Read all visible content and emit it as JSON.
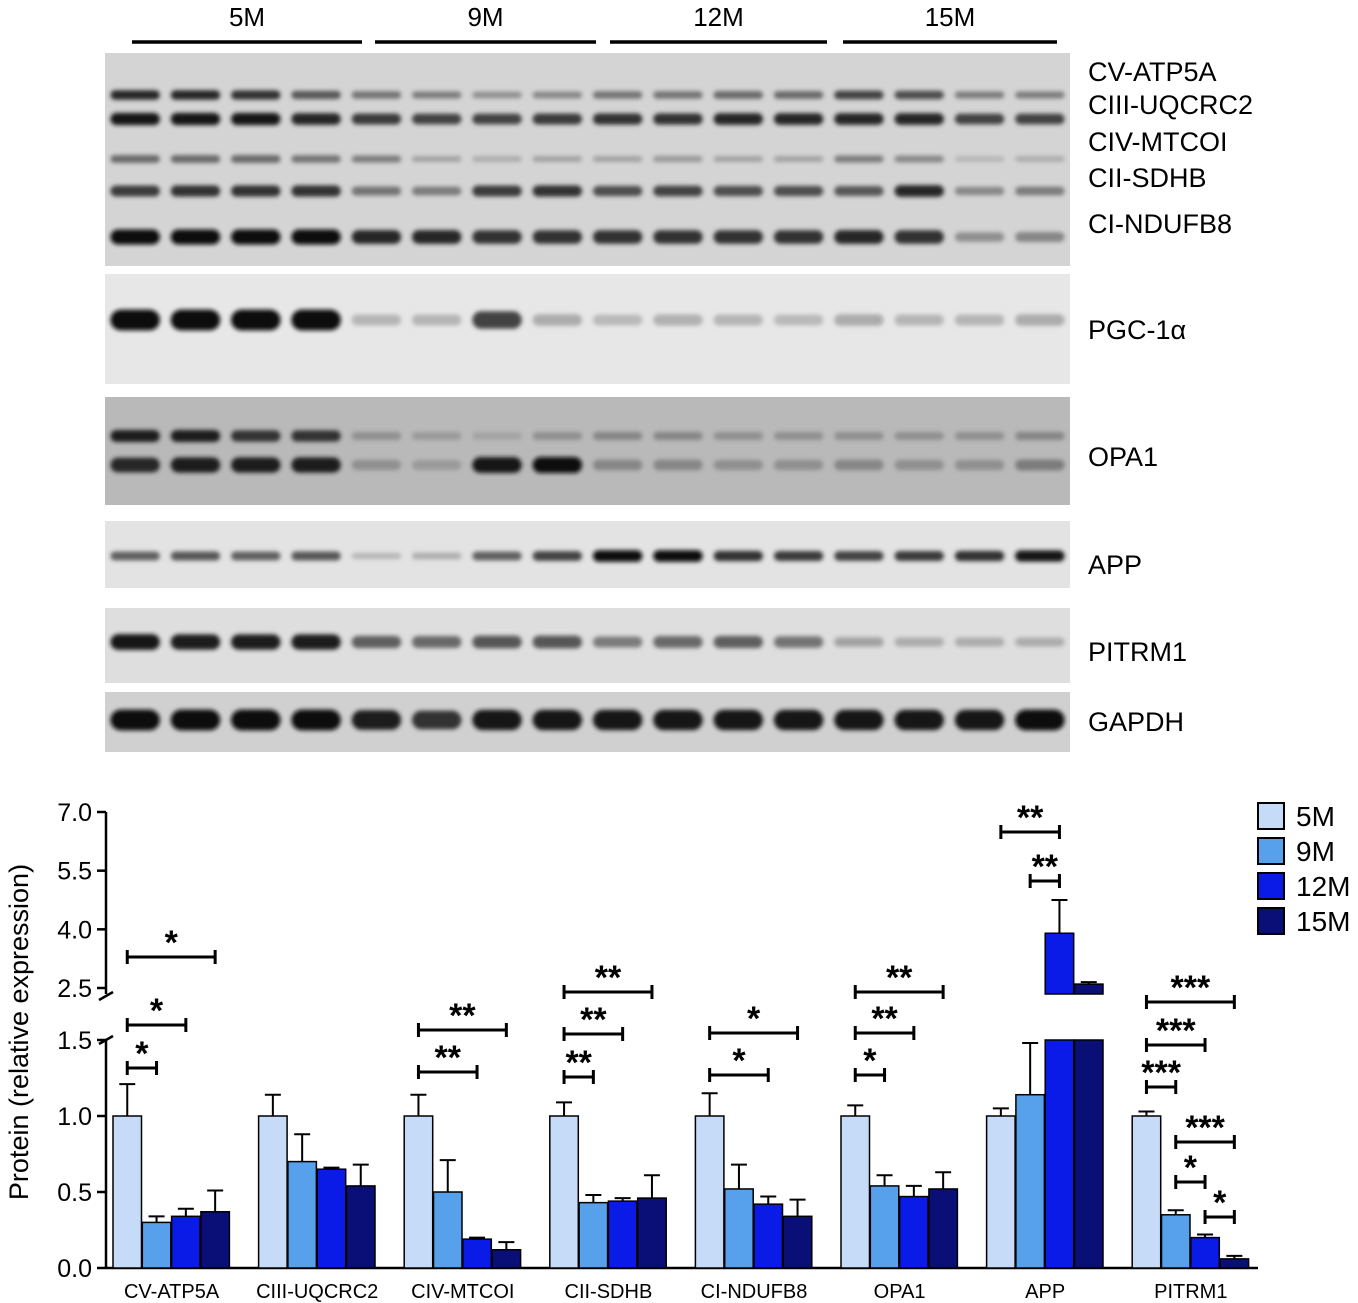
{
  "blot": {
    "age_groups": [
      "5M",
      "9M",
      "12M",
      "15M"
    ],
    "lanes_per_group": 4,
    "panels": [
      {
        "id": "oxphos",
        "bands": [
          {
            "label": "CV-ATP5A",
            "intensity": [
              0.85,
              0.85,
              0.8,
              0.6,
              0.45,
              0.4,
              0.3,
              0.35,
              0.45,
              0.45,
              0.5,
              0.5,
              0.7,
              0.65,
              0.4,
              0.4
            ]
          },
          {
            "label": "CIII-UQCRC2",
            "intensity": [
              0.95,
              0.95,
              0.95,
              0.85,
              0.75,
              0.7,
              0.7,
              0.75,
              0.8,
              0.8,
              0.85,
              0.85,
              0.85,
              0.85,
              0.7,
              0.7
            ]
          },
          {
            "label": "CIV-MTCOI",
            "intensity": [
              0.5,
              0.5,
              0.5,
              0.45,
              0.4,
              0.2,
              0.15,
              0.2,
              0.2,
              0.25,
              0.2,
              0.2,
              0.4,
              0.35,
              0.1,
              0.15
            ]
          },
          {
            "label": "CII-SDHB",
            "intensity": [
              0.75,
              0.8,
              0.8,
              0.8,
              0.45,
              0.4,
              0.75,
              0.8,
              0.65,
              0.7,
              0.65,
              0.65,
              0.6,
              0.85,
              0.35,
              0.4
            ]
          },
          {
            "label": "CI-NDUFB8",
            "intensity": [
              1,
              1,
              1,
              1,
              0.85,
              0.85,
              0.8,
              0.8,
              0.8,
              0.8,
              0.8,
              0.8,
              0.85,
              0.8,
              0.3,
              0.35
            ]
          }
        ]
      },
      {
        "id": "pgc1a",
        "bands": [
          {
            "label": "PGC-1α",
            "intensity": [
              1,
              1,
              1,
              1,
              0.1,
              0.1,
              0.7,
              0.15,
              0.08,
              0.12,
              0.1,
              0.08,
              0.15,
              0.1,
              0.1,
              0.15
            ]
          }
        ]
      },
      {
        "id": "opa1",
        "bands": [
          {
            "label": "OPA1",
            "intensity": [
              0.9,
              0.9,
              0.8,
              0.8,
              0.3,
              0.25,
              0.2,
              0.3,
              0.35,
              0.35,
              0.3,
              0.3,
              0.3,
              0.3,
              0.3,
              0.35
            ]
          },
          {
            "label": "",
            "intensity": [
              0.85,
              0.9,
              0.9,
              0.9,
              0.3,
              0.25,
              0.95,
              1,
              0.35,
              0.35,
              0.3,
              0.3,
              0.35,
              0.3,
              0.3,
              0.4
            ]
          }
        ]
      },
      {
        "id": "app",
        "bands": [
          {
            "label": "APP",
            "intensity": [
              0.55,
              0.6,
              0.55,
              0.6,
              0.1,
              0.15,
              0.55,
              0.7,
              1,
              1,
              0.8,
              0.75,
              0.7,
              0.75,
              0.8,
              0.95
            ]
          }
        ]
      },
      {
        "id": "pitrm1",
        "bands": [
          {
            "label": "PITRM1",
            "intensity": [
              0.95,
              0.9,
              0.9,
              0.9,
              0.55,
              0.5,
              0.6,
              0.6,
              0.4,
              0.5,
              0.55,
              0.45,
              0.2,
              0.15,
              0.15,
              0.15
            ]
          }
        ]
      },
      {
        "id": "gapdh",
        "bands": [
          {
            "label": "GAPDH",
            "intensity": [
              1,
              1,
              1,
              1,
              0.9,
              0.8,
              0.95,
              0.95,
              0.95,
              0.95,
              0.95,
              0.95,
              0.95,
              0.95,
              0.95,
              1
            ]
          }
        ]
      }
    ]
  },
  "chart_data": {
    "type": "bar",
    "ylabel": "Protein (relative expression)",
    "xlabel": "",
    "y_axis_break": {
      "lower_range": [
        0,
        1.5
      ],
      "upper_range": [
        2.5,
        7.0
      ]
    },
    "yticks_lower": [
      "0.0",
      "0.5",
      "1.0",
      "1.5"
    ],
    "yticks_upper": [
      "2.5",
      "4.0",
      "5.5",
      "7.0"
    ],
    "yticks_lower_values": [
      0,
      0.5,
      1.0,
      1.5
    ],
    "yticks_upper_values": [
      2.5,
      4.0,
      5.5,
      7.0
    ],
    "categories": [
      "CV-ATP5A",
      "CIII-UQCRC2",
      "CIV-MTCOI",
      "CII-SDHB",
      "CI-NDUFB8",
      "OPA1",
      "APP",
      "PITRM1"
    ],
    "series": [
      {
        "name": "5M",
        "color": "#c6dbf7",
        "values": [
          1.0,
          1.0,
          1.0,
          1.0,
          1.0,
          1.0,
          1.0,
          1.0
        ],
        "errors": [
          0.21,
          0.14,
          0.14,
          0.09,
          0.15,
          0.07,
          0.05,
          0.03
        ]
      },
      {
        "name": "9M",
        "color": "#56a0ec",
        "values": [
          0.3,
          0.7,
          0.5,
          0.43,
          0.52,
          0.54,
          1.14,
          0.35
        ],
        "errors": [
          0.04,
          0.18,
          0.21,
          0.05,
          0.16,
          0.07,
          0.34,
          0.03
        ]
      },
      {
        "name": "12M",
        "color": "#0a1be8",
        "values": [
          0.34,
          0.65,
          0.19,
          0.44,
          0.42,
          0.47,
          3.9,
          0.2
        ],
        "errors": [
          0.05,
          0.01,
          0.01,
          0.02,
          0.05,
          0.07,
          0.85,
          0.02
        ]
      },
      {
        "name": "15M",
        "color": "#0a0f78",
        "values": [
          0.37,
          0.54,
          0.12,
          0.46,
          0.34,
          0.52,
          2.6,
          0.06
        ],
        "errors": [
          0.14,
          0.14,
          0.05,
          0.15,
          0.11,
          0.11,
          0.05,
          0.02
        ]
      }
    ],
    "legend": {
      "placement": "top-right"
    },
    "significance": [
      {
        "category": 0,
        "from": 0,
        "to": 1,
        "label": "*"
      },
      {
        "category": 0,
        "from": 0,
        "to": 2,
        "label": "*"
      },
      {
        "category": 0,
        "from": 0,
        "to": 3,
        "label": "*"
      },
      {
        "category": 2,
        "from": 0,
        "to": 2,
        "label": "**"
      },
      {
        "category": 2,
        "from": 0,
        "to": 3,
        "label": "**"
      },
      {
        "category": 3,
        "from": 0,
        "to": 1,
        "label": "**"
      },
      {
        "category": 3,
        "from": 0,
        "to": 2,
        "label": "**"
      },
      {
        "category": 3,
        "from": 0,
        "to": 3,
        "label": "**"
      },
      {
        "category": 4,
        "from": 0,
        "to": 2,
        "label": "*"
      },
      {
        "category": 4,
        "from": 0,
        "to": 3,
        "label": "*"
      },
      {
        "category": 5,
        "from": 0,
        "to": 1,
        "label": "*"
      },
      {
        "category": 5,
        "from": 0,
        "to": 2,
        "label": "**"
      },
      {
        "category": 5,
        "from": 0,
        "to": 3,
        "label": "**"
      },
      {
        "category": 6,
        "from": 0,
        "to": 2,
        "label": "**"
      },
      {
        "category": 6,
        "from": 1,
        "to": 2,
        "label": "**"
      },
      {
        "category": 7,
        "from": 0,
        "to": 1,
        "label": "***"
      },
      {
        "category": 7,
        "from": 0,
        "to": 2,
        "label": "***"
      },
      {
        "category": 7,
        "from": 0,
        "to": 3,
        "label": "***"
      },
      {
        "category": 7,
        "from": 1,
        "to": 2,
        "label": "*"
      },
      {
        "category": 7,
        "from": 1,
        "to": 3,
        "label": "***"
      },
      {
        "category": 7,
        "from": 2,
        "to": 3,
        "label": "*"
      }
    ]
  }
}
